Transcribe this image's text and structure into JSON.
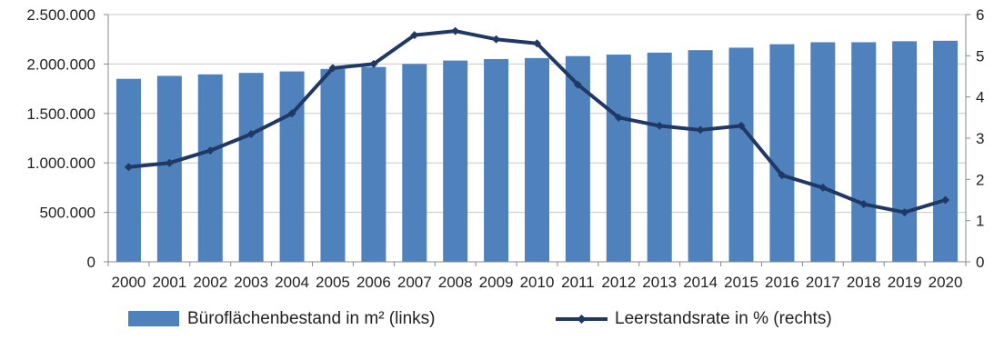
{
  "chart_data": {
    "type": "bar+line",
    "categories": [
      "2000",
      "2001",
      "2002",
      "2003",
      "2004",
      "2005",
      "2006",
      "2007",
      "2008",
      "2009",
      "2010",
      "2011",
      "2012",
      "2013",
      "2014",
      "2015",
      "2016",
      "2017",
      "2018",
      "2019",
      "2020"
    ],
    "series": [
      {
        "name": "Büroflächenbestand in m² (links)",
        "type": "bar",
        "axis": "left",
        "color": "#4f81bd",
        "values": [
          1850000,
          1880000,
          1895000,
          1910000,
          1925000,
          1950000,
          1970000,
          2000000,
          2035000,
          2050000,
          2060000,
          2080000,
          2095000,
          2115000,
          2140000,
          2165000,
          2200000,
          2220000,
          2220000,
          2230000,
          2235000
        ]
      },
      {
        "name": "Leerstandsrate in % (rechts)",
        "type": "line",
        "axis": "right",
        "color": "#1f3864",
        "values": [
          2.3,
          2.4,
          2.7,
          3.1,
          3.6,
          4.7,
          4.8,
          5.5,
          5.6,
          5.4,
          5.3,
          4.3,
          3.5,
          3.3,
          3.2,
          3.3,
          2.1,
          1.8,
          1.4,
          1.2,
          1.5
        ]
      }
    ],
    "y_left": {
      "range": [
        0,
        2500000
      ],
      "ticks": [
        {
          "value": 0,
          "label": "0"
        },
        {
          "value": 500000,
          "label": "500.000"
        },
        {
          "value": 1000000,
          "label": "1.000.000"
        },
        {
          "value": 1500000,
          "label": "1.500.000"
        },
        {
          "value": 2000000,
          "label": "2.000.000"
        },
        {
          "value": 2500000,
          "label": "2.500.000"
        }
      ]
    },
    "y_right": {
      "range": [
        0,
        6
      ],
      "ticks": [
        {
          "value": 0,
          "label": "0"
        },
        {
          "value": 1,
          "label": "1"
        },
        {
          "value": 2,
          "label": "2"
        },
        {
          "value": 3,
          "label": "3"
        },
        {
          "value": 4,
          "label": "4"
        },
        {
          "value": 5,
          "label": "5"
        },
        {
          "value": 6,
          "label": "6"
        }
      ]
    },
    "grid": true,
    "legend_position": "bottom"
  }
}
